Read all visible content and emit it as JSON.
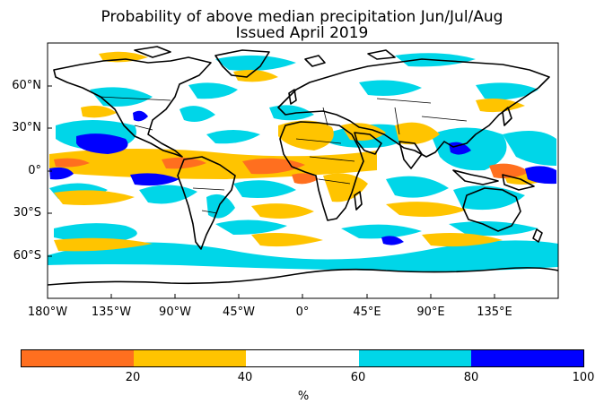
{
  "title": {
    "line1": "Probability of above median precipitation Jun/Jul/Aug",
    "line2": "Issued April 2019"
  },
  "map": {
    "lat_labels": [
      "60°N",
      "30°N",
      "0°",
      "30°S",
      "60°S"
    ],
    "lon_labels": [
      "180°W",
      "135°W",
      "90°W",
      "45°W",
      "0°",
      "45°E",
      "90°E",
      "135°E"
    ],
    "lon_range": [
      -180,
      180
    ],
    "lat_range": [
      -90,
      90
    ],
    "ocean_color": "#ffffff",
    "coastline_color": "#000000"
  },
  "colorbar": {
    "unit": "%",
    "ticks": [
      "20",
      "40",
      "60",
      "80",
      "100"
    ],
    "bins": [
      {
        "range": [
          0,
          20
        ],
        "color": "#ff6f1f"
      },
      {
        "range": [
          20,
          40
        ],
        "color": "#ffc400"
      },
      {
        "range": [
          40,
          60
        ],
        "color": "#ffffff"
      },
      {
        "range": [
          60,
          80
        ],
        "color": "#00d6e8"
      },
      {
        "range": [
          80,
          100
        ],
        "color": "#0000ff"
      }
    ]
  }
}
